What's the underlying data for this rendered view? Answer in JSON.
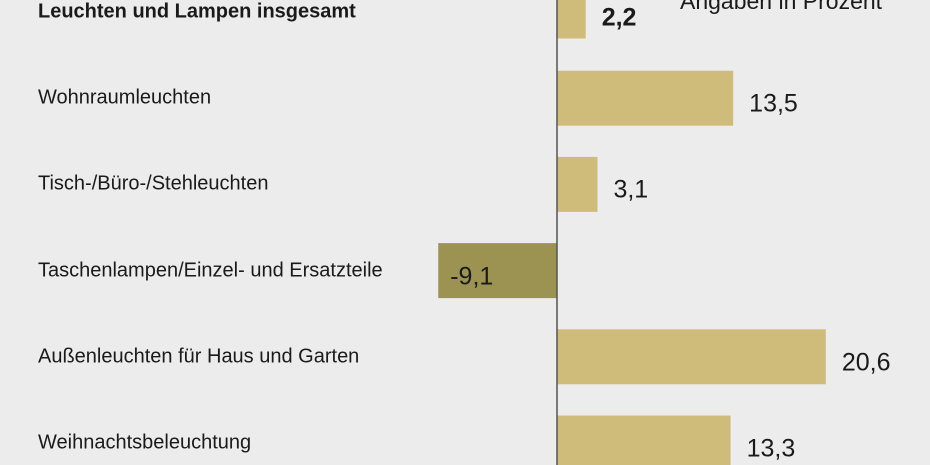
{
  "chart_data": {
    "type": "bar",
    "orientation": "horizontal",
    "unit_note": "Angaben in Prozent",
    "categories": [
      "Leuchten und Lampen insgesamt",
      "Wohnraumleuchten",
      "Tisch-/Büro-/Stehleuchten",
      "Taschenlampen/Einzel- und Ersatzteile",
      "Außenleuchten für Haus und Garten",
      "Weihnachtsbeleuchtung"
    ],
    "values": [
      2.2,
      13.5,
      3.1,
      -9.1,
      20.6,
      13.3
    ],
    "value_labels": [
      "2,2",
      "13,5",
      "3,1",
      "-9,1",
      "20,6",
      "13,3"
    ],
    "highlight_first": true,
    "colors": {
      "positive": "#cfbc7a",
      "negative": "#9c9352",
      "axis": "#555555",
      "background": "#ececec"
    }
  }
}
